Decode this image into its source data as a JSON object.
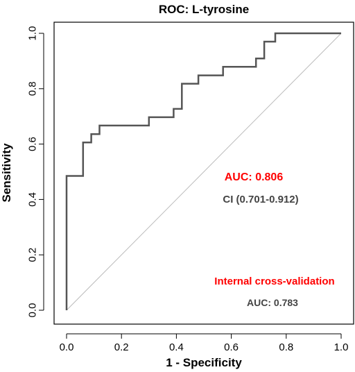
{
  "chart_data": {
    "type": "line",
    "title": "ROC: L-tyrosine",
    "xlabel": "1 - Specificity",
    "ylabel": "Sensitivity",
    "xlim": [
      0,
      1
    ],
    "ylim": [
      0,
      1
    ],
    "xticks": [
      "0.0",
      "0.2",
      "0.4",
      "0.6",
      "0.8",
      "1.0"
    ],
    "yticks": [
      "0.0",
      "0.2",
      "0.4",
      "0.6",
      "0.8",
      "1.0"
    ],
    "grid": false,
    "series": [
      {
        "color": "#555555",
        "x": [
          0.0,
          0.0,
          0.06,
          0.06,
          0.09,
          0.09,
          0.12,
          0.12,
          0.3,
          0.3,
          0.39,
          0.39,
          0.42,
          0.42,
          0.48,
          0.48,
          0.57,
          0.57,
          0.69,
          0.69,
          0.72,
          0.72,
          0.76,
          0.76,
          1.0
        ],
        "y": [
          0.0,
          0.485,
          0.485,
          0.606,
          0.606,
          0.636,
          0.636,
          0.667,
          0.667,
          0.697,
          0.697,
          0.727,
          0.727,
          0.818,
          0.818,
          0.848,
          0.848,
          0.879,
          0.879,
          0.909,
          0.909,
          0.97,
          0.97,
          1.0,
          1.0
        ]
      }
    ],
    "reference_line": {
      "from": [
        0,
        0
      ],
      "to": [
        1,
        1
      ],
      "color": "#bbbbbb"
    },
    "annotations": {
      "auc_main": {
        "text": "AUC: 0.806",
        "color": "#ff0000"
      },
      "ci": {
        "text": "CI (0.701-0.912)",
        "color": "#444444"
      },
      "icv_title": {
        "text": "Internal cross-validation",
        "color": "#ff0000"
      },
      "icv_auc": {
        "text": "AUC: 0.783",
        "color": "#444444"
      }
    }
  }
}
